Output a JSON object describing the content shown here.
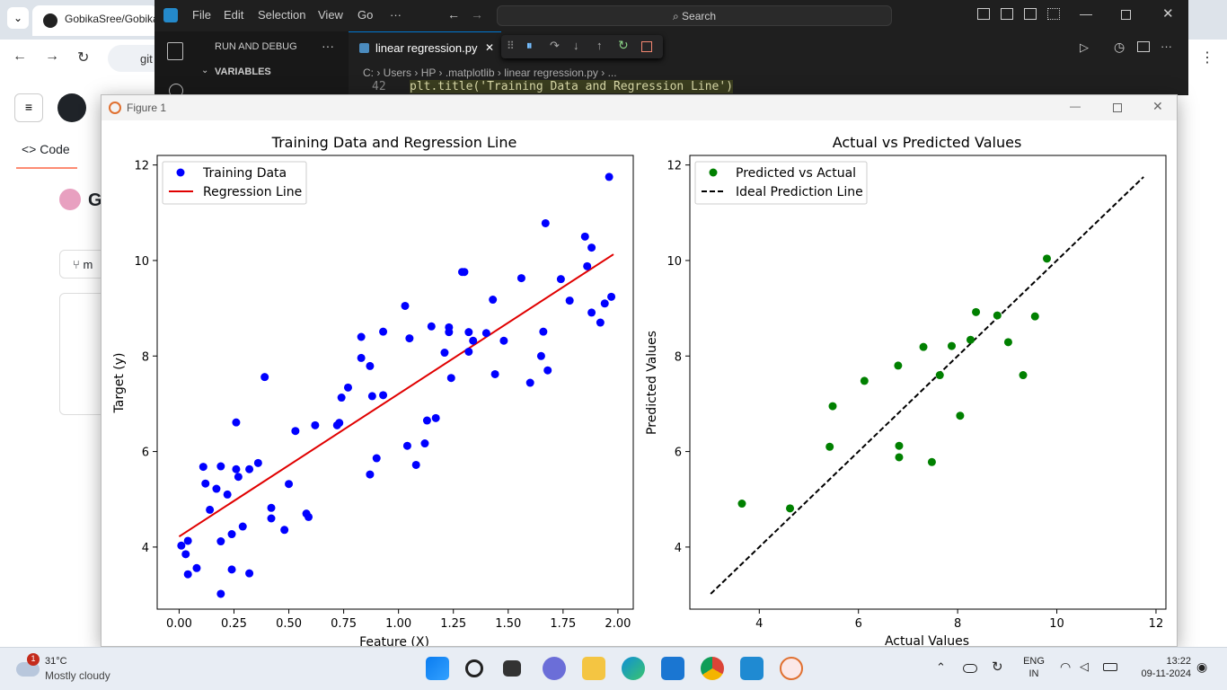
{
  "chrome": {
    "tab_title": "GobikaSree/Gobika",
    "address_partial": "git",
    "gh_tab_code": "Code",
    "gh_repo_initial": "G",
    "branch_initial": "m"
  },
  "vscode": {
    "menu": [
      "File",
      "Edit",
      "Selection",
      "View",
      "Go",
      "···"
    ],
    "search_placeholder": "Search",
    "sidebar_title": "RUN AND DEBUG",
    "sidebar_section": "VARIABLES",
    "tab_label": "linear regression.py",
    "breadcrumb": [
      "C:",
      "Users",
      "HP",
      ".matplotlib",
      "linear regression.py",
      "..."
    ],
    "code_line_number": "42",
    "code_line": "plt.title('Training Data and Regression Line')"
  },
  "figure_window": {
    "title": "Figure 1"
  },
  "chart_data": [
    {
      "type": "scatter",
      "title": "Training Data and Regression Line",
      "xlabel": "Feature (X)",
      "ylabel": "Target (y)",
      "xlim": [
        -0.1,
        2.07
      ],
      "ylim": [
        2.7,
        12.2
      ],
      "xticks": [
        "0.00",
        "0.25",
        "0.50",
        "0.75",
        "1.00",
        "1.25",
        "1.50",
        "1.75",
        "2.00"
      ],
      "yticks": [
        "4",
        "6",
        "8",
        "10",
        "12"
      ],
      "legend_position": "top-left",
      "series": [
        {
          "name": "Training Data",
          "color": "#0000ff",
          "points": [
            [
              0.01,
              4.03
            ],
            [
              0.03,
              3.85
            ],
            [
              0.04,
              4.13
            ],
            [
              0.04,
              3.43
            ],
            [
              0.08,
              3.56
            ],
            [
              0.11,
              5.68
            ],
            [
              0.12,
              5.33
            ],
            [
              0.14,
              4.78
            ],
            [
              0.17,
              5.22
            ],
            [
              0.19,
              5.69
            ],
            [
              0.19,
              4.12
            ],
            [
              0.19,
              3.02
            ],
            [
              0.22,
              5.1
            ],
            [
              0.24,
              4.27
            ],
            [
              0.24,
              3.53
            ],
            [
              0.26,
              6.61
            ],
            [
              0.26,
              5.63
            ],
            [
              0.27,
              5.47
            ],
            [
              0.29,
              4.43
            ],
            [
              0.32,
              5.63
            ],
            [
              0.32,
              3.45
            ],
            [
              0.36,
              5.76
            ],
            [
              0.39,
              7.56
            ],
            [
              0.42,
              4.82
            ],
            [
              0.42,
              4.6
            ],
            [
              0.48,
              4.36
            ],
            [
              0.5,
              5.32
            ],
            [
              0.53,
              6.43
            ],
            [
              0.58,
              4.7
            ],
            [
              0.59,
              4.63
            ],
            [
              0.62,
              6.55
            ],
            [
              0.72,
              6.55
            ],
            [
              0.73,
              6.6
            ],
            [
              0.74,
              7.13
            ],
            [
              0.77,
              7.34
            ],
            [
              0.83,
              8.4
            ],
            [
              0.83,
              7.96
            ],
            [
              0.87,
              7.79
            ],
            [
              0.87,
              5.52
            ],
            [
              0.88,
              7.16
            ],
            [
              0.9,
              5.86
            ],
            [
              0.93,
              8.51
            ],
            [
              0.93,
              7.18
            ],
            [
              1.03,
              9.05
            ],
            [
              1.04,
              6.12
            ],
            [
              1.05,
              8.37
            ],
            [
              1.08,
              5.72
            ],
            [
              1.12,
              6.17
            ],
            [
              1.13,
              6.65
            ],
            [
              1.15,
              8.62
            ],
            [
              1.17,
              6.7
            ],
            [
              1.21,
              8.07
            ],
            [
              1.23,
              8.6
            ],
            [
              1.23,
              8.5
            ],
            [
              1.24,
              7.54
            ],
            [
              1.29,
              9.76
            ],
            [
              1.3,
              9.76
            ],
            [
              1.32,
              8.5
            ],
            [
              1.32,
              8.09
            ],
            [
              1.34,
              8.32
            ],
            [
              1.4,
              8.48
            ],
            [
              1.43,
              9.18
            ],
            [
              1.44,
              7.62
            ],
            [
              1.48,
              8.32
            ],
            [
              1.56,
              9.63
            ],
            [
              1.6,
              7.44
            ],
            [
              1.65,
              8.0
            ],
            [
              1.66,
              8.51
            ],
            [
              1.67,
              10.78
            ],
            [
              1.68,
              7.7
            ],
            [
              1.74,
              9.61
            ],
            [
              1.78,
              9.16
            ],
            [
              1.85,
              10.5
            ],
            [
              1.86,
              9.88
            ],
            [
              1.88,
              10.27
            ],
            [
              1.88,
              8.91
            ],
            [
              1.92,
              8.7
            ],
            [
              1.94,
              9.1
            ],
            [
              1.96,
              11.75
            ],
            [
              1.97,
              9.24
            ]
          ]
        },
        {
          "name": "Regression Line",
          "color": "#e00000",
          "line": [
            [
              0.0,
              4.22
            ],
            [
              1.98,
              10.13
            ]
          ]
        }
      ]
    },
    {
      "type": "scatter",
      "title": "Actual vs Predicted Values",
      "xlabel": "Actual Values",
      "ylabel": "Predicted Values",
      "xlim": [
        2.6,
        12.2
      ],
      "ylim": [
        2.7,
        12.2
      ],
      "xticks": [
        "4",
        "6",
        "8",
        "10",
        "12"
      ],
      "yticks": [
        "4",
        "6",
        "8",
        "10",
        "12"
      ],
      "legend_position": "top-left",
      "series": [
        {
          "name": "Predicted vs Actual",
          "color": "#008000",
          "points": [
            [
              3.65,
              4.91
            ],
            [
              4.62,
              4.81
            ],
            [
              5.42,
              6.1
            ],
            [
              5.48,
              6.95
            ],
            [
              6.12,
              7.48
            ],
            [
              6.8,
              7.8
            ],
            [
              6.82,
              6.12
            ],
            [
              6.82,
              5.88
            ],
            [
              7.31,
              8.19
            ],
            [
              7.48,
              5.78
            ],
            [
              7.64,
              7.6
            ],
            [
              7.88,
              8.21
            ],
            [
              8.05,
              6.75
            ],
            [
              8.26,
              8.34
            ],
            [
              8.37,
              8.92
            ],
            [
              8.8,
              8.85
            ],
            [
              9.02,
              8.29
            ],
            [
              9.32,
              7.6
            ],
            [
              9.56,
              8.83
            ],
            [
              9.8,
              10.04
            ]
          ]
        },
        {
          "name": "Ideal Prediction Line",
          "color": "#000000",
          "line": [
            [
              3.02,
              3.02
            ],
            [
              11.75,
              11.75
            ]
          ]
        }
      ]
    }
  ],
  "taskbar": {
    "weather_badge": "1",
    "temperature": "31°C",
    "weather_desc": "Mostly cloudy",
    "lang_top": "ENG",
    "lang_bottom": "IN",
    "time": "13:22",
    "date": "09-11-2024"
  }
}
